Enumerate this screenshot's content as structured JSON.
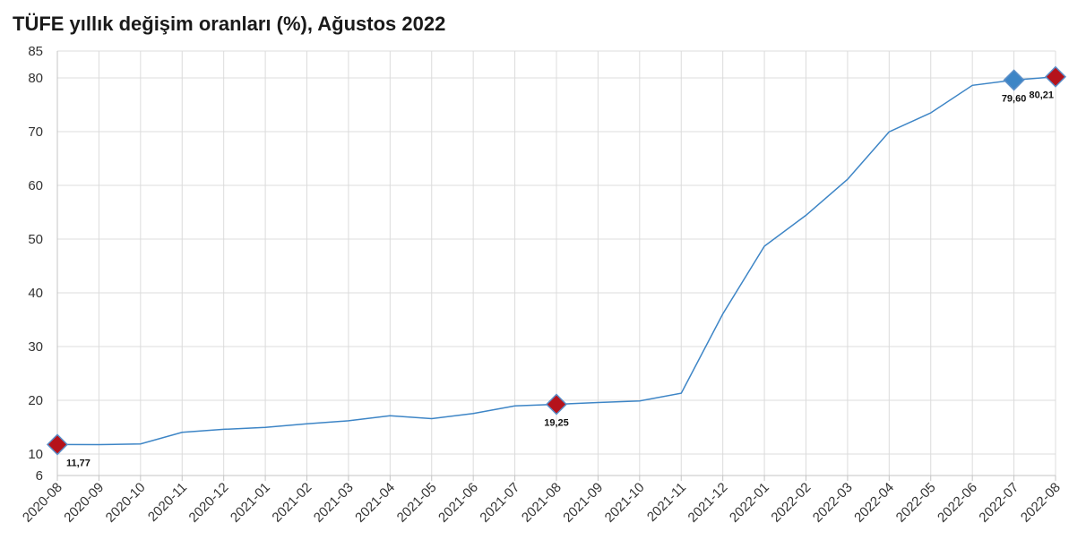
{
  "chart_data": {
    "type": "line",
    "title": "TÜFE yıllık değişim oranları (%), Ağustos 2022",
    "xlabel": "",
    "ylabel": "",
    "ylim": [
      6,
      85
    ],
    "yticks": [
      6,
      10,
      20,
      30,
      40,
      50,
      60,
      70,
      80,
      85
    ],
    "grid": true,
    "categories": [
      "2020-08",
      "2020-09",
      "2020-10",
      "2020-11",
      "2020-12",
      "2021-01",
      "2021-02",
      "2021-03",
      "2021-04",
      "2021-05",
      "2021-06",
      "2021-07",
      "2021-08",
      "2021-09",
      "2021-10",
      "2021-11",
      "2021-12",
      "2022-01",
      "2022-02",
      "2022-03",
      "2022-04",
      "2022-05",
      "2022-06",
      "2022-07",
      "2022-08"
    ],
    "series": [
      {
        "values": [
          11.77,
          11.75,
          11.89,
          14.03,
          14.6,
          14.97,
          15.61,
          16.19,
          17.14,
          16.59,
          17.53,
          18.95,
          19.25,
          19.58,
          19.89,
          21.31,
          36.08,
          48.69,
          54.44,
          61.14,
          69.97,
          73.5,
          78.62,
          79.6,
          80.21
        ],
        "color": "#3d85c6"
      }
    ],
    "highlights": [
      {
        "category": "2020-08",
        "value": 11.77,
        "label": "11,77",
        "color": "#b5121b"
      },
      {
        "category": "2021-08",
        "value": 19.25,
        "label": "19,25",
        "color": "#b5121b"
      },
      {
        "category": "2022-07",
        "value": 79.6,
        "label": "79,60",
        "color": "#3d85c6"
      },
      {
        "category": "2022-08",
        "value": 80.21,
        "label": "80,21",
        "color": "#b5121b"
      }
    ]
  }
}
